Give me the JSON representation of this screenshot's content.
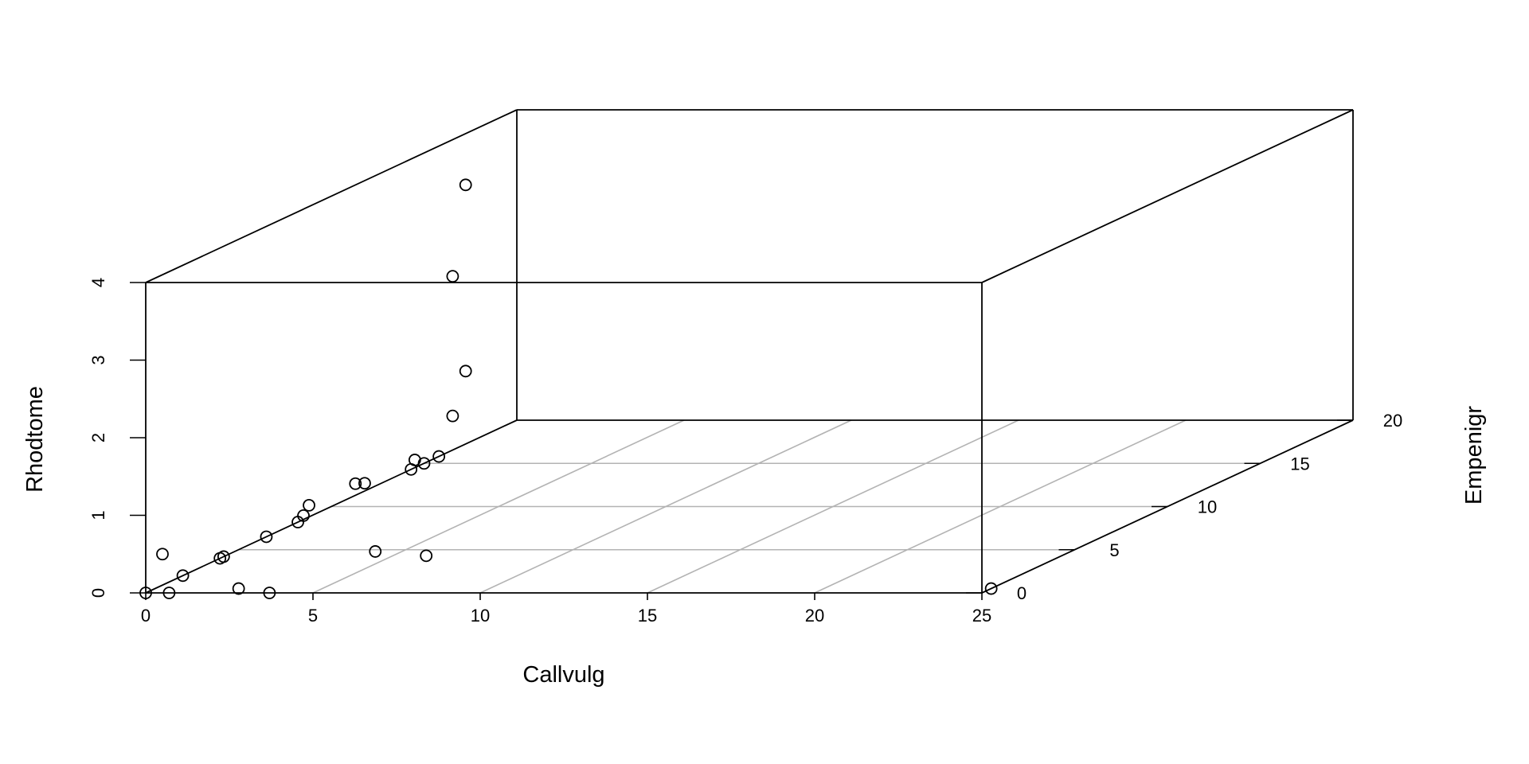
{
  "chart_data": {
    "type": "scatter",
    "subtype": "3d-scatter",
    "title": "",
    "xlabel": "Callvulg",
    "ylabel": "Empenigr",
    "zlabel": "Rhodtome",
    "xlim": [
      0,
      25
    ],
    "ylim": [
      0,
      20
    ],
    "zlim": [
      0,
      4
    ],
    "x_ticks": [
      "0",
      "5",
      "10",
      "15",
      "20",
      "25"
    ],
    "y_ticks": [
      "0",
      "5",
      "10",
      "15",
      "20"
    ],
    "z_ticks": [
      "0",
      "1",
      "2",
      "3",
      "4"
    ],
    "grid": true,
    "marker": "open-circle",
    "colors": {
      "box": "#000000",
      "grid": "#b3b3b3",
      "points": "#000000"
    },
    "points": [
      {
        "x": 0.0,
        "y": 0.0,
        "z": 0.0
      },
      {
        "x": 0.7,
        "y": 0.0,
        "z": 0.0
      },
      {
        "x": 0.0,
        "y": 2.0,
        "z": 0.0
      },
      {
        "x": 2.5,
        "y": 0.5,
        "z": 0.0
      },
      {
        "x": 3.7,
        "y": 0.0,
        "z": 0.0
      },
      {
        "x": 0.5,
        "y": 0.0,
        "z": 0.5
      },
      {
        "x": 0.0,
        "y": 4.0,
        "z": 0.0
      },
      {
        "x": 0.0,
        "y": 4.2,
        "z": 0.0
      },
      {
        "x": 0.0,
        "y": 6.5,
        "z": 0.0
      },
      {
        "x": 0.0,
        "y": 8.2,
        "z": 0.0
      },
      {
        "x": 0.0,
        "y": 8.5,
        "z": 0.05
      },
      {
        "x": 0.0,
        "y": 8.8,
        "z": 0.15
      },
      {
        "x": 0.0,
        "y": 11.3,
        "z": 0.15
      },
      {
        "x": 0.0,
        "y": 11.8,
        "z": 0.1
      },
      {
        "x": 0.0,
        "y": 14.3,
        "z": 0.0
      },
      {
        "x": 0.0,
        "y": 14.5,
        "z": 0.1
      },
      {
        "x": 0.0,
        "y": 15.0,
        "z": 0.0
      },
      {
        "x": 0.0,
        "y": 15.8,
        "z": 0.0
      },
      {
        "x": 4.2,
        "y": 4.8,
        "z": 0.0
      },
      {
        "x": 0.3,
        "y": 16.0,
        "z": 0.5
      },
      {
        "x": 0.3,
        "y": 16.7,
        "z": 1.0
      },
      {
        "x": 0.3,
        "y": 16.0,
        "z": 2.3
      },
      {
        "x": 0.3,
        "y": 16.7,
        "z": 3.4
      },
      {
        "x": 6.0,
        "y": 4.3,
        "z": 0.0
      },
      {
        "x": 25.0,
        "y": 0.5,
        "z": 0.0
      }
    ]
  }
}
